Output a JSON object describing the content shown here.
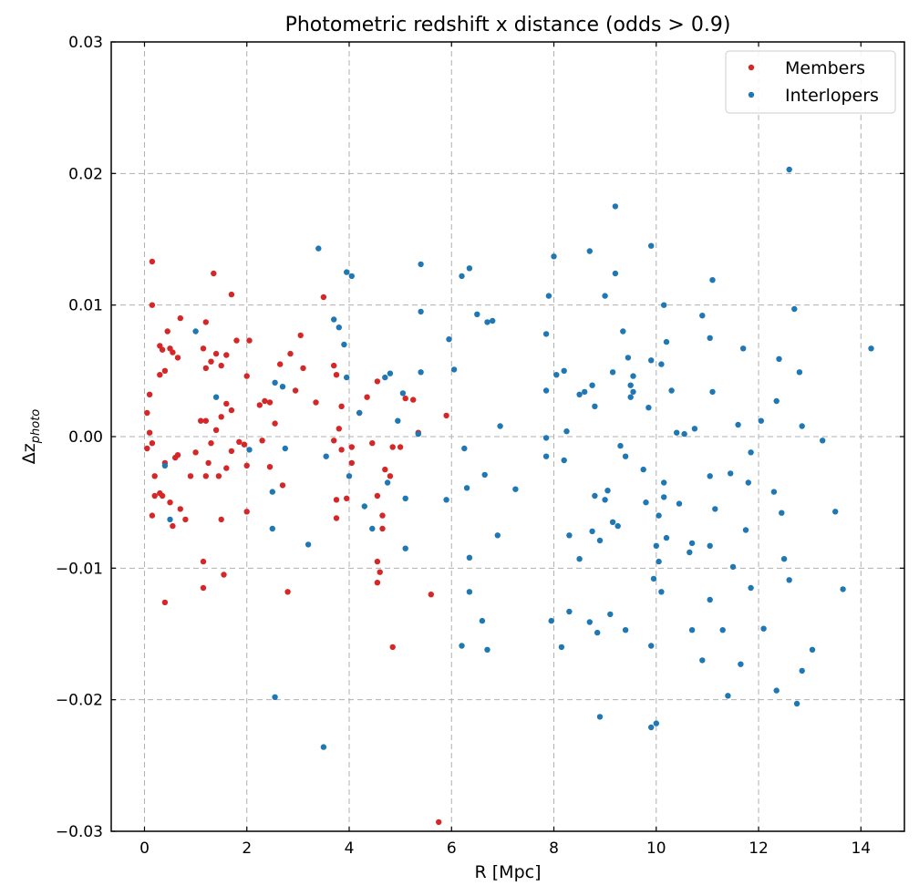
{
  "chart_data": {
    "type": "scatter",
    "title": "Photometric redshift x distance (odds > 0.9)",
    "xlabel": "R [Mpc]",
    "ylabel_main": "Δz",
    "ylabel_sub": "photo",
    "xlim": [
      -0.65,
      14.85
    ],
    "ylim": [
      -0.03,
      0.03
    ],
    "xticks": [
      0,
      2,
      4,
      6,
      8,
      10,
      12,
      14
    ],
    "yticks": [
      -0.03,
      -0.02,
      -0.01,
      0.0,
      0.01,
      0.02,
      0.03
    ],
    "xtick_labels": [
      "0",
      "2",
      "4",
      "6",
      "8",
      "10",
      "12",
      "14"
    ],
    "ytick_labels": [
      "−0.03",
      "−0.02",
      "−0.01",
      "0.00",
      "0.01",
      "0.02",
      "0.03"
    ],
    "grid": true,
    "legend_position": "top-right",
    "series": [
      {
        "name": "Members",
        "color": "#d62728",
        "points": [
          [
            0.15,
            0.0133
          ],
          [
            0.15,
            0.01
          ],
          [
            0.3,
            0.0069
          ],
          [
            0.35,
            0.0066
          ],
          [
            0.45,
            0.008
          ],
          [
            0.5,
            0.0067
          ],
          [
            0.55,
            0.0064
          ],
          [
            0.7,
            0.009
          ],
          [
            0.65,
            0.006
          ],
          [
            0.4,
            0.005
          ],
          [
            0.3,
            0.0047
          ],
          [
            0.05,
            0.0018
          ],
          [
            0.1,
            0.0032
          ],
          [
            0.1,
            0.0003
          ],
          [
            0.15,
            -0.0005
          ],
          [
            0.05,
            -0.0009
          ],
          [
            0.2,
            -0.003
          ],
          [
            0.15,
            -0.006
          ],
          [
            0.2,
            -0.0045
          ],
          [
            0.3,
            -0.0043
          ],
          [
            0.35,
            -0.0045
          ],
          [
            0.4,
            -0.002
          ],
          [
            0.4,
            -0.0126
          ],
          [
            0.55,
            -0.0068
          ],
          [
            0.5,
            -0.005
          ],
          [
            0.6,
            -0.0016
          ],
          [
            0.65,
            -0.0014
          ],
          [
            0.7,
            -0.0055
          ],
          [
            0.8,
            -0.0063
          ],
          [
            0.9,
            -0.003
          ],
          [
            1.0,
            -0.0012
          ],
          [
            1.1,
            0.0012
          ],
          [
            1.2,
            0.0012
          ],
          [
            1.15,
            0.0067
          ],
          [
            1.2,
            0.0087
          ],
          [
            1.2,
            0.0052
          ],
          [
            1.35,
            0.0124
          ],
          [
            1.4,
            0.0063
          ],
          [
            1.3,
            0.0057
          ],
          [
            1.5,
            0.0054
          ],
          [
            1.6,
            0.0062
          ],
          [
            1.7,
            0.0108
          ],
          [
            1.8,
            0.0073
          ],
          [
            1.7,
            0.002
          ],
          [
            1.6,
            0.0025
          ],
          [
            1.5,
            0.0015
          ],
          [
            1.4,
            0.0005
          ],
          [
            1.3,
            -0.0005
          ],
          [
            1.25,
            -0.002
          ],
          [
            1.2,
            -0.003
          ],
          [
            1.15,
            -0.0095
          ],
          [
            1.15,
            -0.0115
          ],
          [
            1.5,
            -0.0063
          ],
          [
            1.55,
            -0.0105
          ],
          [
            1.45,
            -0.003
          ],
          [
            1.6,
            -0.0024
          ],
          [
            1.7,
            -0.0011
          ],
          [
            1.85,
            -0.0004
          ],
          [
            1.95,
            -0.0006
          ],
          [
            2.0,
            0.0046
          ],
          [
            2.05,
            0.0073
          ],
          [
            2.0,
            -0.0022
          ],
          [
            2.0,
            -0.0057
          ],
          [
            2.25,
            0.0024
          ],
          [
            2.35,
            0.0027
          ],
          [
            2.45,
            0.0026
          ],
          [
            2.55,
            0.001
          ],
          [
            2.3,
            -0.0003
          ],
          [
            2.45,
            -0.0023
          ],
          [
            2.7,
            -0.0037
          ],
          [
            2.8,
            -0.0118
          ],
          [
            2.65,
            0.0055
          ],
          [
            2.85,
            0.0063
          ],
          [
            2.95,
            0.0035
          ],
          [
            3.05,
            0.0077
          ],
          [
            3.1,
            0.0052
          ],
          [
            3.35,
            0.0026
          ],
          [
            3.5,
            0.0106
          ],
          [
            3.7,
            0.0054
          ],
          [
            3.75,
            0.0047
          ],
          [
            3.85,
            0.0023
          ],
          [
            3.8,
            0.0006
          ],
          [
            3.7,
            -0.0003
          ],
          [
            3.85,
            -0.001
          ],
          [
            3.75,
            -0.0048
          ],
          [
            3.75,
            -0.0062
          ],
          [
            3.95,
            -0.0047
          ],
          [
            4.05,
            -0.0008
          ],
          [
            4.05,
            -0.002
          ],
          [
            4.2,
            0.0018
          ],
          [
            4.35,
            0.003
          ],
          [
            4.55,
            0.0042
          ],
          [
            4.45,
            -0.0005
          ],
          [
            4.55,
            -0.0045
          ],
          [
            4.65,
            -0.006
          ],
          [
            4.65,
            -0.007
          ],
          [
            4.55,
            -0.0095
          ],
          [
            4.6,
            -0.0103
          ],
          [
            4.55,
            -0.0111
          ],
          [
            4.85,
            -0.016
          ],
          [
            4.7,
            -0.0025
          ],
          [
            4.8,
            -0.003
          ],
          [
            4.85,
            -0.0008
          ],
          [
            5.0,
            -0.0008
          ],
          [
            5.1,
            0.0029
          ],
          [
            5.25,
            0.0028
          ],
          [
            5.35,
            0.0003
          ],
          [
            5.6,
            -0.012
          ],
          [
            5.9,
            0.0016
          ],
          [
            5.75,
            -0.0293
          ]
        ]
      },
      {
        "name": "Interlopers",
        "color": "#1f77b4",
        "points": [
          [
            1.0,
            0.008
          ],
          [
            1.4,
            0.003
          ],
          [
            0.4,
            -0.0022
          ],
          [
            0.5,
            -0.0063
          ],
          [
            2.05,
            -0.001
          ],
          [
            2.5,
            -0.0042
          ],
          [
            2.5,
            -0.007
          ],
          [
            2.55,
            0.0041
          ],
          [
            2.7,
            0.0038
          ],
          [
            2.75,
            -0.0009
          ],
          [
            2.55,
            -0.0198
          ],
          [
            3.2,
            -0.0082
          ],
          [
            3.4,
            0.0143
          ],
          [
            3.5,
            -0.0236
          ],
          [
            3.55,
            -0.0015
          ],
          [
            3.7,
            0.0089
          ],
          [
            3.8,
            0.0083
          ],
          [
            3.9,
            0.007
          ],
          [
            3.95,
            0.0045
          ],
          [
            3.95,
            0.0125
          ],
          [
            4.05,
            0.0122
          ],
          [
            4.0,
            -0.003
          ],
          [
            4.2,
            0.0018
          ],
          [
            4.3,
            -0.0053
          ],
          [
            4.45,
            -0.007
          ],
          [
            4.7,
            0.0045
          ],
          [
            4.8,
            0.0048
          ],
          [
            4.75,
            -0.0035
          ],
          [
            4.95,
            0.0012
          ],
          [
            5.05,
            0.0033
          ],
          [
            5.1,
            -0.0047
          ],
          [
            5.1,
            -0.0085
          ],
          [
            5.35,
            0.0002
          ],
          [
            5.4,
            0.0049
          ],
          [
            5.4,
            0.0131
          ],
          [
            5.4,
            0.0095
          ],
          [
            5.95,
            0.0074
          ],
          [
            6.05,
            0.0051
          ],
          [
            6.2,
            0.0122
          ],
          [
            6.35,
            0.0128
          ],
          [
            6.25,
            -0.0009
          ],
          [
            6.3,
            -0.0039
          ],
          [
            6.35,
            -0.0092
          ],
          [
            6.35,
            -0.0118
          ],
          [
            6.2,
            -0.0159
          ],
          [
            5.9,
            -0.0048
          ],
          [
            6.5,
            0.0093
          ],
          [
            6.65,
            -0.0029
          ],
          [
            6.7,
            0.0087
          ],
          [
            6.8,
            0.0088
          ],
          [
            6.6,
            -0.014
          ],
          [
            6.7,
            -0.0162
          ],
          [
            6.95,
            0.0008
          ],
          [
            6.9,
            -0.0075
          ],
          [
            7.25,
            -0.004
          ],
          [
            7.85,
            0.0078
          ],
          [
            7.9,
            0.0107
          ],
          [
            7.85,
            0.0035
          ],
          [
            7.85,
            -0.0001
          ],
          [
            7.85,
            -0.0015
          ],
          [
            8.0,
            0.0137
          ],
          [
            8.05,
            0.0047
          ],
          [
            8.2,
            0.005
          ],
          [
            8.2,
            -0.0018
          ],
          [
            8.25,
            0.0004
          ],
          [
            8.3,
            -0.0133
          ],
          [
            8.15,
            -0.016
          ],
          [
            7.95,
            -0.014
          ],
          [
            8.3,
            -0.0075
          ],
          [
            8.5,
            -0.0093
          ],
          [
            8.5,
            0.0032
          ],
          [
            8.6,
            0.0034
          ],
          [
            8.7,
            0.0141
          ],
          [
            8.75,
            0.0039
          ],
          [
            8.8,
            0.0023
          ],
          [
            8.8,
            -0.0045
          ],
          [
            8.75,
            -0.0072
          ],
          [
            8.9,
            -0.0079
          ],
          [
            8.7,
            -0.0141
          ],
          [
            8.85,
            -0.0149
          ],
          [
            8.9,
            -0.0213
          ],
          [
            9.0,
            0.0107
          ],
          [
            9.05,
            -0.0041
          ],
          [
            9.0,
            -0.0048
          ],
          [
            9.1,
            -0.0135
          ],
          [
            9.15,
            0.0049
          ],
          [
            9.2,
            0.0175
          ],
          [
            9.2,
            0.0124
          ],
          [
            9.15,
            -0.0065
          ],
          [
            9.25,
            -0.0068
          ],
          [
            9.3,
            -0.0007
          ],
          [
            9.35,
            0.008
          ],
          [
            9.4,
            -0.0015
          ],
          [
            9.45,
            0.006
          ],
          [
            9.5,
            0.0039
          ],
          [
            9.5,
            0.003
          ],
          [
            9.55,
            0.0034
          ],
          [
            9.55,
            0.0046
          ],
          [
            9.4,
            -0.0147
          ],
          [
            9.75,
            -0.0025
          ],
          [
            9.8,
            -0.005
          ],
          [
            9.85,
            0.0022
          ],
          [
            9.9,
            0.0145
          ],
          [
            9.9,
            0.0058
          ],
          [
            9.95,
            -0.0108
          ],
          [
            9.9,
            -0.0159
          ],
          [
            9.9,
            -0.0221
          ],
          [
            10.0,
            -0.0218
          ],
          [
            10.05,
            -0.006
          ],
          [
            10.0,
            -0.0083
          ],
          [
            10.05,
            -0.0095
          ],
          [
            10.1,
            -0.0118
          ],
          [
            10.15,
            -0.0035
          ],
          [
            10.15,
            -0.0046
          ],
          [
            10.1,
            0.0055
          ],
          [
            10.15,
            0.01
          ],
          [
            10.2,
            0.0072
          ],
          [
            10.2,
            -0.0077
          ],
          [
            10.3,
            0.0035
          ],
          [
            10.4,
            0.0003
          ],
          [
            10.45,
            -0.0051
          ],
          [
            10.55,
            0.0002
          ],
          [
            10.65,
            -0.0088
          ],
          [
            10.7,
            -0.0081
          ],
          [
            10.7,
            -0.0147
          ],
          [
            10.75,
            0.0006
          ],
          [
            10.9,
            0.0092
          ],
          [
            10.9,
            -0.017
          ],
          [
            11.05,
            0.0075
          ],
          [
            11.05,
            -0.003
          ],
          [
            11.1,
            0.0119
          ],
          [
            11.1,
            0.0034
          ],
          [
            11.15,
            -0.0055
          ],
          [
            11.05,
            -0.0083
          ],
          [
            11.05,
            -0.0124
          ],
          [
            11.3,
            -0.0147
          ],
          [
            11.4,
            -0.0197
          ],
          [
            11.45,
            -0.0028
          ],
          [
            11.5,
            -0.0099
          ],
          [
            11.6,
            0.0009
          ],
          [
            11.65,
            -0.0173
          ],
          [
            11.7,
            0.0067
          ],
          [
            11.75,
            -0.0071
          ],
          [
            11.8,
            -0.0035
          ],
          [
            11.85,
            -0.0115
          ],
          [
            11.85,
            -0.0012
          ],
          [
            12.05,
            0.0012
          ],
          [
            12.1,
            -0.0146
          ],
          [
            12.3,
            -0.0042
          ],
          [
            12.35,
            -0.0193
          ],
          [
            12.35,
            0.0027
          ],
          [
            12.4,
            0.0059
          ],
          [
            12.45,
            -0.0058
          ],
          [
            12.5,
            -0.0093
          ],
          [
            12.6,
            0.0203
          ],
          [
            12.6,
            -0.0109
          ],
          [
            12.7,
            0.0097
          ],
          [
            12.8,
            0.0049
          ],
          [
            12.75,
            -0.0203
          ],
          [
            12.85,
            0.0008
          ],
          [
            12.85,
            -0.0178
          ],
          [
            13.05,
            -0.0162
          ],
          [
            13.25,
            -0.0003
          ],
          [
            13.5,
            -0.0057
          ],
          [
            13.65,
            -0.0116
          ],
          [
            14.2,
            0.0067
          ]
        ]
      }
    ]
  }
}
